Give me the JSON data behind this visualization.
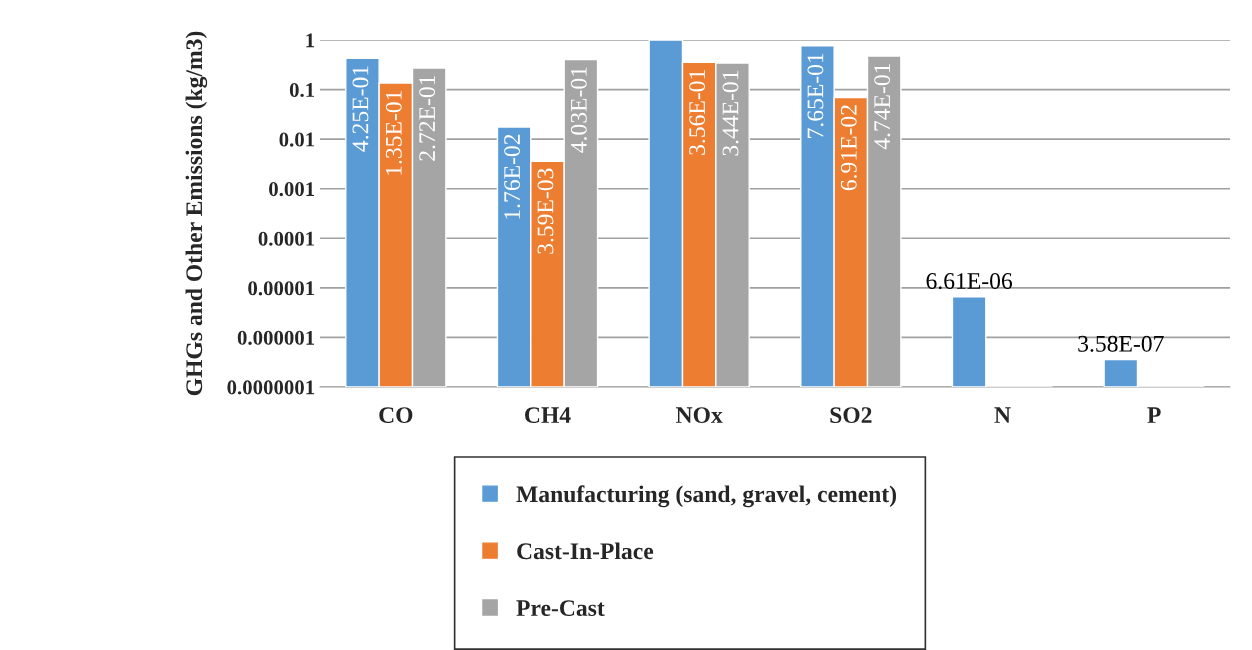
{
  "chart_data": {
    "type": "bar",
    "ylabel": "GHGs and Other Emissions (kg/m3)",
    "categories": [
      "CO",
      "CH4",
      "NOx",
      "SO2",
      "N",
      "P"
    ],
    "series": [
      {
        "name": "Manufacturing (sand, gravel, cement)",
        "color": "#5b9bd5",
        "values": [
          0.425,
          0.0176,
          1,
          0.765,
          6.61e-06,
          3.58e-07
        ],
        "value_labels": [
          "4.25E-01",
          "1.76E-02",
          null,
          "7.65E-01",
          "6.61E-06",
          "3.58E-07"
        ]
      },
      {
        "name": "Cast-In-Place",
        "color": "#ed7d31",
        "values": [
          0.135,
          0.00359,
          0.356,
          0.0691,
          null,
          null
        ],
        "value_labels": [
          "1.35E-01",
          "3.59E-03",
          "3.56E-01",
          "6.91E-02",
          null,
          null
        ]
      },
      {
        "name": "Pre-Cast",
        "color": "#a5a5a5",
        "values": [
          0.272,
          0.403,
          0.344,
          0.474,
          null,
          null
        ],
        "value_labels": [
          "2.72E-01",
          "4.03E-01",
          "3.44E-01",
          "4.74E-01",
          null,
          null
        ]
      }
    ],
    "log": true,
    "ylim": [
      1e-07,
      1
    ],
    "yticks": [
      {
        "value": 1e-07,
        "label": "0.0000001"
      },
      {
        "value": 1e-06,
        "label": "0.000001"
      },
      {
        "value": 1e-05,
        "label": "0.00001"
      },
      0.0001,
      0.001,
      0.01,
      0.1,
      1
    ],
    "grid": "y",
    "legend": "bottom"
  }
}
